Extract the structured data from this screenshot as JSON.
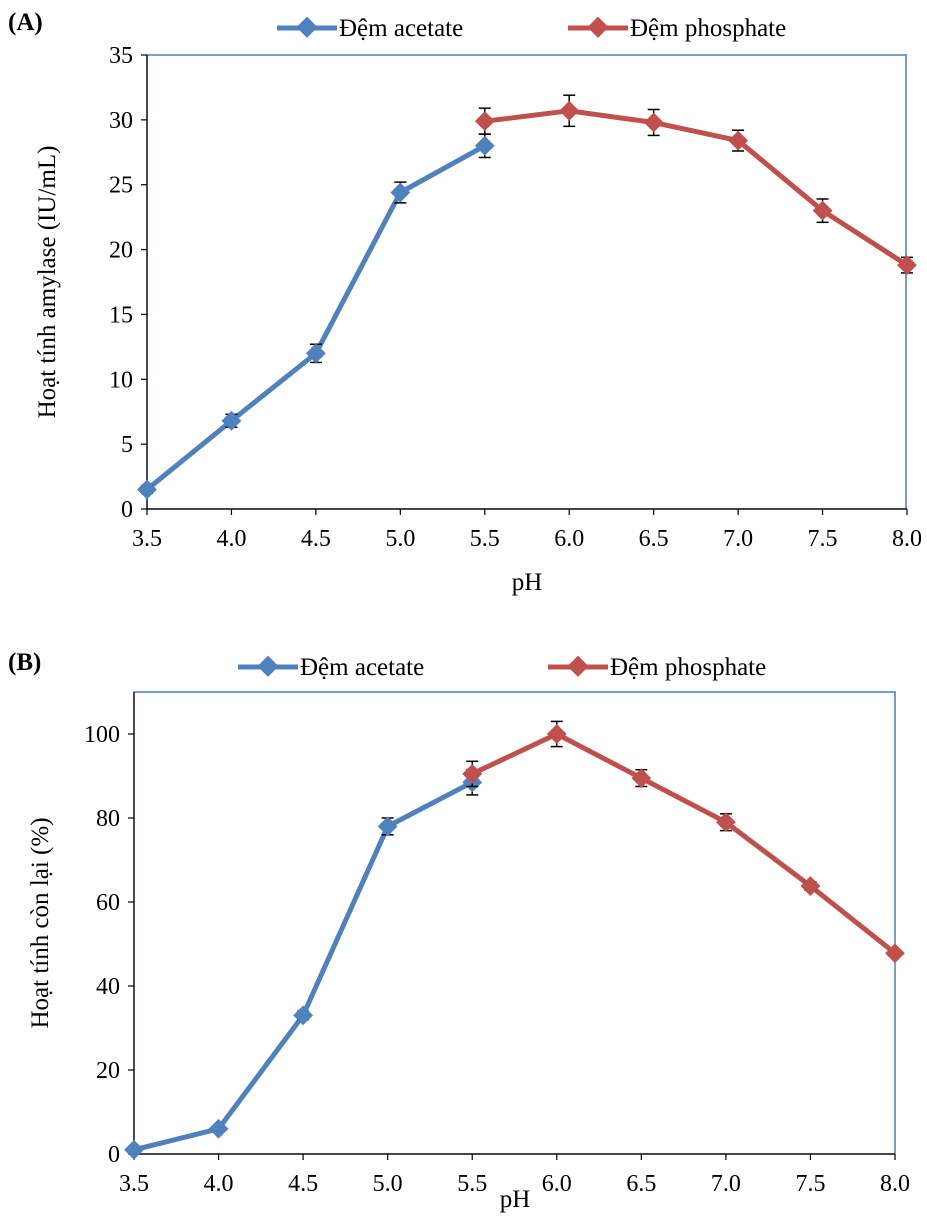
{
  "colors": {
    "acetate": "#4F81BD",
    "phosphate": "#C0504D",
    "frame": "#4A7EBB",
    "errorbar": "#000000"
  },
  "chart_data": [
    {
      "panel_label": "(A)",
      "type": "line",
      "xlabel": "pH",
      "ylabel": "Hoạt tính amylase (IU/mL)",
      "x_ticks": [
        "3.5",
        "4.0",
        "4.5",
        "5.0",
        "5.5",
        "6.0",
        "6.5",
        "7.0",
        "7.5",
        "8.0"
      ],
      "y_ticks": [
        "0",
        "5",
        "10",
        "15",
        "20",
        "25",
        "30",
        "35"
      ],
      "xlim": [
        3.5,
        8.0
      ],
      "ylim": [
        0,
        35
      ],
      "legend_position": "top",
      "grid": false,
      "series": [
        {
          "name": "Đệm acetate",
          "color": "#4F81BD",
          "x": [
            3.5,
            4.0,
            4.5,
            5.0,
            5.5
          ],
          "y": [
            1.5,
            6.8,
            12.0,
            24.4,
            28.0
          ],
          "err": [
            0.3,
            0.5,
            0.7,
            0.8,
            0.9
          ]
        },
        {
          "name": "Đệm phosphate",
          "color": "#C0504D",
          "x": [
            5.5,
            6.0,
            6.5,
            7.0,
            7.5,
            8.0
          ],
          "y": [
            29.9,
            30.7,
            29.8,
            28.4,
            23.0,
            18.8
          ],
          "err": [
            1.0,
            1.2,
            1.0,
            0.8,
            0.9,
            0.6
          ]
        }
      ]
    },
    {
      "panel_label": "(B)",
      "type": "line",
      "xlabel": "pH",
      "ylabel": "Hoạt tính còn lại (%)",
      "x_ticks": [
        "3.5",
        "4.0",
        "4.5",
        "5.0",
        "5.5",
        "6.0",
        "6.5",
        "7.0",
        "7.5",
        "8.0"
      ],
      "y_ticks": [
        "0",
        "20",
        "40",
        "60",
        "80",
        "100"
      ],
      "xlim": [
        3.5,
        8.0
      ],
      "ylim": [
        0,
        110
      ],
      "legend_position": "top",
      "grid": false,
      "series": [
        {
          "name": "Đệm acetate",
          "color": "#4F81BD",
          "x": [
            3.5,
            4.0,
            4.5,
            5.0,
            5.5
          ],
          "y": [
            1.0,
            6.0,
            33.0,
            78.0,
            88.5
          ],
          "err": [
            0.2,
            0.5,
            1.0,
            2.0,
            3.0
          ]
        },
        {
          "name": "Đệm phosphate",
          "color": "#C0504D",
          "x": [
            5.5,
            6.0,
            6.5,
            7.0,
            7.5,
            8.0
          ],
          "y": [
            90.5,
            100.0,
            89.5,
            79.0,
            63.8,
            47.8
          ],
          "err": [
            3.0,
            3.0,
            2.0,
            2.0,
            1.0,
            0.5
          ]
        }
      ]
    }
  ]
}
